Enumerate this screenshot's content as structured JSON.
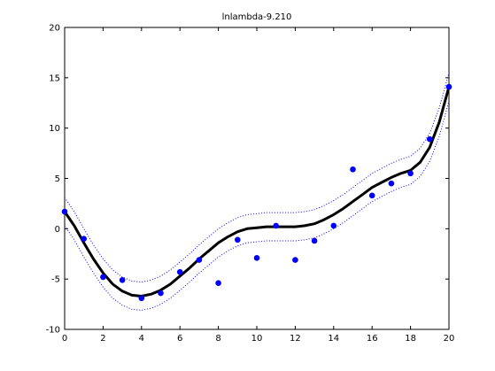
{
  "chart_data": {
    "type": "scatter",
    "title": "lnlambda-9.210",
    "xlabel": "",
    "ylabel": "",
    "xlim": [
      0,
      20
    ],
    "ylim": [
      -10,
      20
    ],
    "xticks": [
      0,
      2,
      4,
      6,
      8,
      10,
      12,
      14,
      16,
      18,
      20
    ],
    "yticks": [
      -10,
      -5,
      0,
      5,
      10,
      15,
      20
    ],
    "grid": false,
    "legend": "none",
    "colors": {
      "points": "#0000ff",
      "fit": "#000000",
      "band": "#0000ff",
      "axes": "#000000"
    },
    "series": [
      {
        "name": "data",
        "kind": "points",
        "x": [
          0,
          1,
          2,
          3,
          4,
          5,
          6,
          7,
          8,
          9,
          10,
          11,
          12,
          13,
          14,
          15,
          16,
          17,
          18,
          19,
          20
        ],
        "y": [
          1.7,
          -1.0,
          -4.8,
          -5.1,
          -6.9,
          -6.4,
          -4.3,
          -3.1,
          -5.4,
          -1.1,
          -2.9,
          0.3,
          -3.1,
          -1.2,
          0.3,
          5.9,
          3.3,
          4.5,
          5.5,
          8.9,
          14.1
        ]
      },
      {
        "name": "fit",
        "kind": "line",
        "x": [
          0,
          0.5,
          1,
          1.5,
          2,
          2.5,
          3,
          3.5,
          4,
          4.5,
          5,
          5.5,
          6,
          6.5,
          7,
          7.5,
          8,
          8.5,
          9,
          9.5,
          10,
          10.5,
          11,
          11.5,
          12,
          12.5,
          13,
          13.5,
          14,
          14.5,
          15,
          15.5,
          16,
          16.5,
          17,
          17.5,
          18,
          18.5,
          19,
          19.5,
          20
        ],
        "y": [
          1.7,
          0.3,
          -1.4,
          -3.0,
          -4.4,
          -5.5,
          -6.2,
          -6.6,
          -6.7,
          -6.5,
          -6.1,
          -5.5,
          -4.7,
          -3.9,
          -3.0,
          -2.2,
          -1.4,
          -0.8,
          -0.3,
          0.0,
          0.1,
          0.2,
          0.2,
          0.2,
          0.2,
          0.3,
          0.5,
          0.9,
          1.4,
          2.0,
          2.7,
          3.4,
          4.1,
          4.6,
          5.1,
          5.5,
          5.8,
          6.6,
          8.1,
          10.6,
          14.1
        ]
      },
      {
        "name": "upper-band",
        "kind": "dotted-line",
        "offset": 1.4
      },
      {
        "name": "lower-band",
        "kind": "dotted-line",
        "offset": -1.4
      }
    ]
  }
}
